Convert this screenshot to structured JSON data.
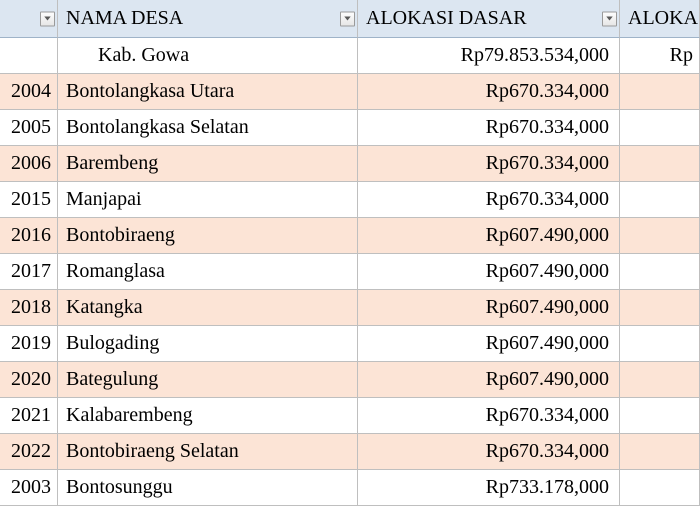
{
  "columns": {
    "code": "",
    "name": "NAMA DESA",
    "alloc1": "ALOKASI DASAR",
    "alloc2": "ALOKAS"
  },
  "summary": {
    "name": "Kab. Gowa",
    "alloc1": "Rp79.853.534,000",
    "alloc2": "Rp"
  },
  "rows": [
    {
      "code": "2004",
      "name": "Bontolangkasa Utara",
      "alloc1": "Rp670.334,000",
      "alloc2": ""
    },
    {
      "code": "2005",
      "name": "Bontolangkasa Selatan",
      "alloc1": "Rp670.334,000",
      "alloc2": ""
    },
    {
      "code": "2006",
      "name": "Barembeng",
      "alloc1": "Rp670.334,000",
      "alloc2": ""
    },
    {
      "code": "2015",
      "name": "Manjapai",
      "alloc1": "Rp670.334,000",
      "alloc2": ""
    },
    {
      "code": "2016",
      "name": "Bontobiraeng",
      "alloc1": "Rp607.490,000",
      "alloc2": ""
    },
    {
      "code": "2017",
      "name": "Romanglasa",
      "alloc1": "Rp607.490,000",
      "alloc2": ""
    },
    {
      "code": "2018",
      "name": "Katangka",
      "alloc1": "Rp607.490,000",
      "alloc2": ""
    },
    {
      "code": "2019",
      "name": "Bulogading",
      "alloc1": "Rp607.490,000",
      "alloc2": ""
    },
    {
      "code": "2020",
      "name": "Bategulung",
      "alloc1": "Rp607.490,000",
      "alloc2": ""
    },
    {
      "code": "2021",
      "name": "Kalabarembeng",
      "alloc1": "Rp670.334,000",
      "alloc2": ""
    },
    {
      "code": "2022",
      "name": "Bontobiraeng Selatan",
      "alloc1": "Rp670.334,000",
      "alloc2": ""
    },
    {
      "code": "2003",
      "name": "Bontosunggu",
      "alloc1": "Rp733.178,000",
      "alloc2": ""
    }
  ],
  "stripes": [
    "tan",
    "white",
    "tan",
    "white",
    "tan",
    "white",
    "tan",
    "white",
    "tan",
    "white",
    "tan",
    "white"
  ],
  "colors": {
    "header_bg": "#dce6f1",
    "stripe_tan": "#fce4d6",
    "stripe_white": "#ffffff",
    "border": "#bfbfbf",
    "text": "#000000"
  },
  "font": {
    "family": "Times New Roman",
    "size_pt": 15
  }
}
